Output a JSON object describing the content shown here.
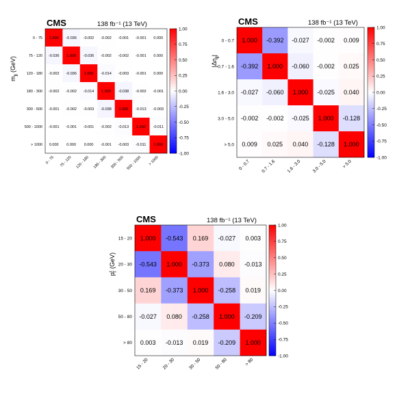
{
  "chart_data": [
    {
      "type": "heatmap",
      "experiment_label": "CMS",
      "luminosity_label": "138 fb⁻¹ (13 TeV)",
      "ylabel": "mⱼⱼ (GeV)",
      "ylabel_main": "m",
      "ylabel_sub": "jj",
      "ylabel_unit": " (GeV)",
      "categories": [
        "0 - 75",
        "75 - 120",
        "120 - 180",
        "180 - 300",
        "300 - 500",
        "500 - 1000",
        "> 1000"
      ],
      "matrix": [
        [
          1.0,
          -0.036,
          -0.002,
          -0.002,
          -0.001,
          -0.001,
          -0.0
        ],
        [
          -0.036,
          1.0,
          -0.036,
          -0.002,
          -0.002,
          -0.001,
          -0.0
        ],
        [
          -0.002,
          -0.036,
          1.0,
          -0.014,
          -0.003,
          -0.001,
          -0.0
        ],
        [
          -0.002,
          -0.002,
          -0.014,
          1.0,
          -0.038,
          -0.002,
          -0.001
        ],
        [
          -0.001,
          -0.002,
          -0.003,
          -0.038,
          1.0,
          -0.013,
          -0.003
        ],
        [
          -0.001,
          -0.001,
          -0.001,
          -0.002,
          -0.013,
          1.0,
          -0.011
        ],
        [
          -0.0,
          -0.0,
          -0.0,
          -0.001,
          -0.003,
          -0.011,
          1.0
        ]
      ],
      "zlim": [
        -1.0,
        1.0
      ],
      "colorbar_ticks": [
        "1.00",
        "0.75",
        "0.50",
        "0.25",
        "0.00",
        "-0.25",
        "-0.50",
        "-0.75",
        "-1.00"
      ],
      "colorscale": [
        "#0000ff",
        "#ffffff",
        "#ff0000"
      ]
    },
    {
      "type": "heatmap",
      "experiment_label": "CMS",
      "luminosity_label": "138 fb⁻¹ (13 TeV)",
      "ylabel": "|Δηⱼⱼ|",
      "ylabel_main": "|Δη",
      "ylabel_sub": "jj",
      "ylabel_unit": "|",
      "categories": [
        "0 - 0.7",
        "0.7 - 1.6",
        "1.6 - 3.0",
        "3.0 - 5.0",
        "> 5.0"
      ],
      "matrix": [
        [
          1.0,
          -0.392,
          -0.027,
          -0.002,
          0.009
        ],
        [
          -0.392,
          1.0,
          -0.06,
          -0.002,
          0.025
        ],
        [
          -0.027,
          -0.06,
          1.0,
          -0.025,
          0.04
        ],
        [
          -0.002,
          -0.002,
          -0.025,
          1.0,
          -0.128
        ],
        [
          0.009,
          0.025,
          0.04,
          -0.128,
          1.0
        ]
      ],
      "zlim": [
        -1.0,
        1.0
      ],
      "colorbar_ticks": [
        "1.00",
        "0.75",
        "0.50",
        "0.25",
        "0.00",
        "-0.25",
        "-0.50",
        "-0.75",
        "-1.00"
      ],
      "colorscale": [
        "#0000ff",
        "#ffffff",
        "#ff0000"
      ]
    },
    {
      "type": "heatmap",
      "experiment_label": "CMS",
      "luminosity_label": "138 fb⁻¹ (13 TeV)",
      "ylabel": "pᴛᴸ (GeV)",
      "ylabel_main": "p",
      "ylabel_sub": "T",
      "ylabel_sup": "ℓ",
      "ylabel_unit": " (GeV)",
      "categories": [
        "15 - 20",
        "20 - 30",
        "30 - 50",
        "50 - 80",
        "> 80"
      ],
      "matrix": [
        [
          1.0,
          -0.543,
          0.169,
          -0.027,
          0.003
        ],
        [
          -0.543,
          1.0,
          -0.373,
          0.08,
          -0.013
        ],
        [
          0.169,
          -0.373,
          1.0,
          -0.258,
          0.019
        ],
        [
          -0.027,
          0.08,
          -0.258,
          1.0,
          -0.209
        ],
        [
          0.003,
          -0.013,
          0.019,
          -0.209,
          1.0
        ]
      ],
      "zlim": [
        -1.0,
        1.0
      ],
      "colorbar_ticks": [
        "1.00",
        "0.75",
        "0.50",
        "0.25",
        "0.00",
        "-0.25",
        "-0.50",
        "-0.75",
        "-1.00"
      ],
      "colorscale": [
        "#0000ff",
        "#ffffff",
        "#ff0000"
      ]
    }
  ]
}
